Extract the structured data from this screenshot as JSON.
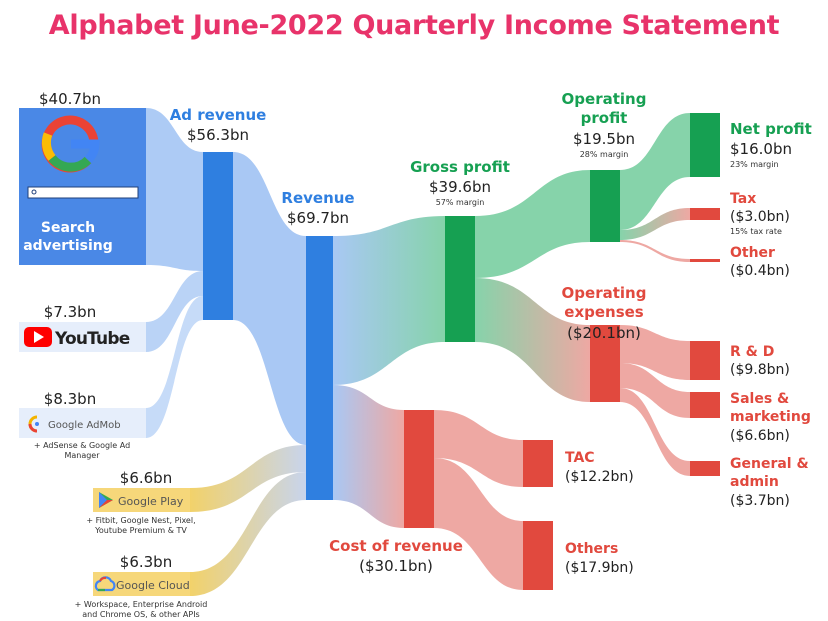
{
  "title": "Alphabet June-2022 Quarterly Income Statement",
  "colors": {
    "title": "#e8336a",
    "blue": "#2f7fe0",
    "blue_flow": "#a9c8f4",
    "green": "#16a052",
    "green_flow": "#86d3aa",
    "red": "#e1493e",
    "red_flow": "#eea8a3",
    "yellow_flow": "#ecd98e"
  },
  "sources": {
    "search": {
      "amount": "$40.7bn",
      "label_line1": "Search",
      "label_line2": "advertising"
    },
    "youtube": {
      "amount": "$7.3bn",
      "logo": "YouTube"
    },
    "admob": {
      "amount": "$8.3bn",
      "logo": "Google AdMob",
      "note_line1": "+ AdSense & Google Ad",
      "note_line2": "Manager"
    },
    "play": {
      "amount": "$6.6bn",
      "logo": "Google Play",
      "note_line1": "+ Fitbit, Google Nest, Pixel,",
      "note_line2": "Youtube Premium & TV"
    },
    "cloud": {
      "amount": "$6.3bn",
      "logo": "Google Cloud",
      "note_line1": "+ Workspace, Enterprise Android",
      "note_line2": "and Chrome OS, & other APIs"
    }
  },
  "nodes": {
    "ad_revenue": {
      "label": "Ad revenue",
      "amount": "$56.3bn"
    },
    "revenue": {
      "label": "Revenue",
      "amount": "$69.7bn"
    },
    "gross_profit": {
      "label": "Gross profit",
      "amount": "$39.6bn",
      "note": "57% margin"
    },
    "cost_of_revenue": {
      "label": "Cost of revenue",
      "amount": "($30.1bn)"
    },
    "operating_profit": {
      "label_line1": "Operating",
      "label_line2": "profit",
      "amount": "$19.5bn",
      "note": "28% margin"
    },
    "operating_expenses": {
      "label_line1": "Operating",
      "label_line2": "expenses",
      "amount": "($20.1bn)"
    },
    "net_profit": {
      "label": "Net profit",
      "amount": "$16.0bn",
      "note": "23% margin"
    },
    "tax": {
      "label": "Tax",
      "amount": "($3.0bn)",
      "note": "15% tax rate"
    },
    "other": {
      "label": "Other",
      "amount": "($0.4bn)"
    },
    "rd": {
      "label": "R & D",
      "amount": "($9.8bn)"
    },
    "sales_marketing": {
      "label_line1": "Sales &",
      "label_line2": "marketing",
      "amount": "($6.6bn)"
    },
    "general_admin": {
      "label_line1": "General &",
      "label_line2": "admin",
      "amount": "($3.7bn)"
    },
    "tac": {
      "label": "TAC",
      "amount": "($12.2bn)"
    },
    "others": {
      "label": "Others",
      "amount": "($17.9bn)"
    }
  }
}
